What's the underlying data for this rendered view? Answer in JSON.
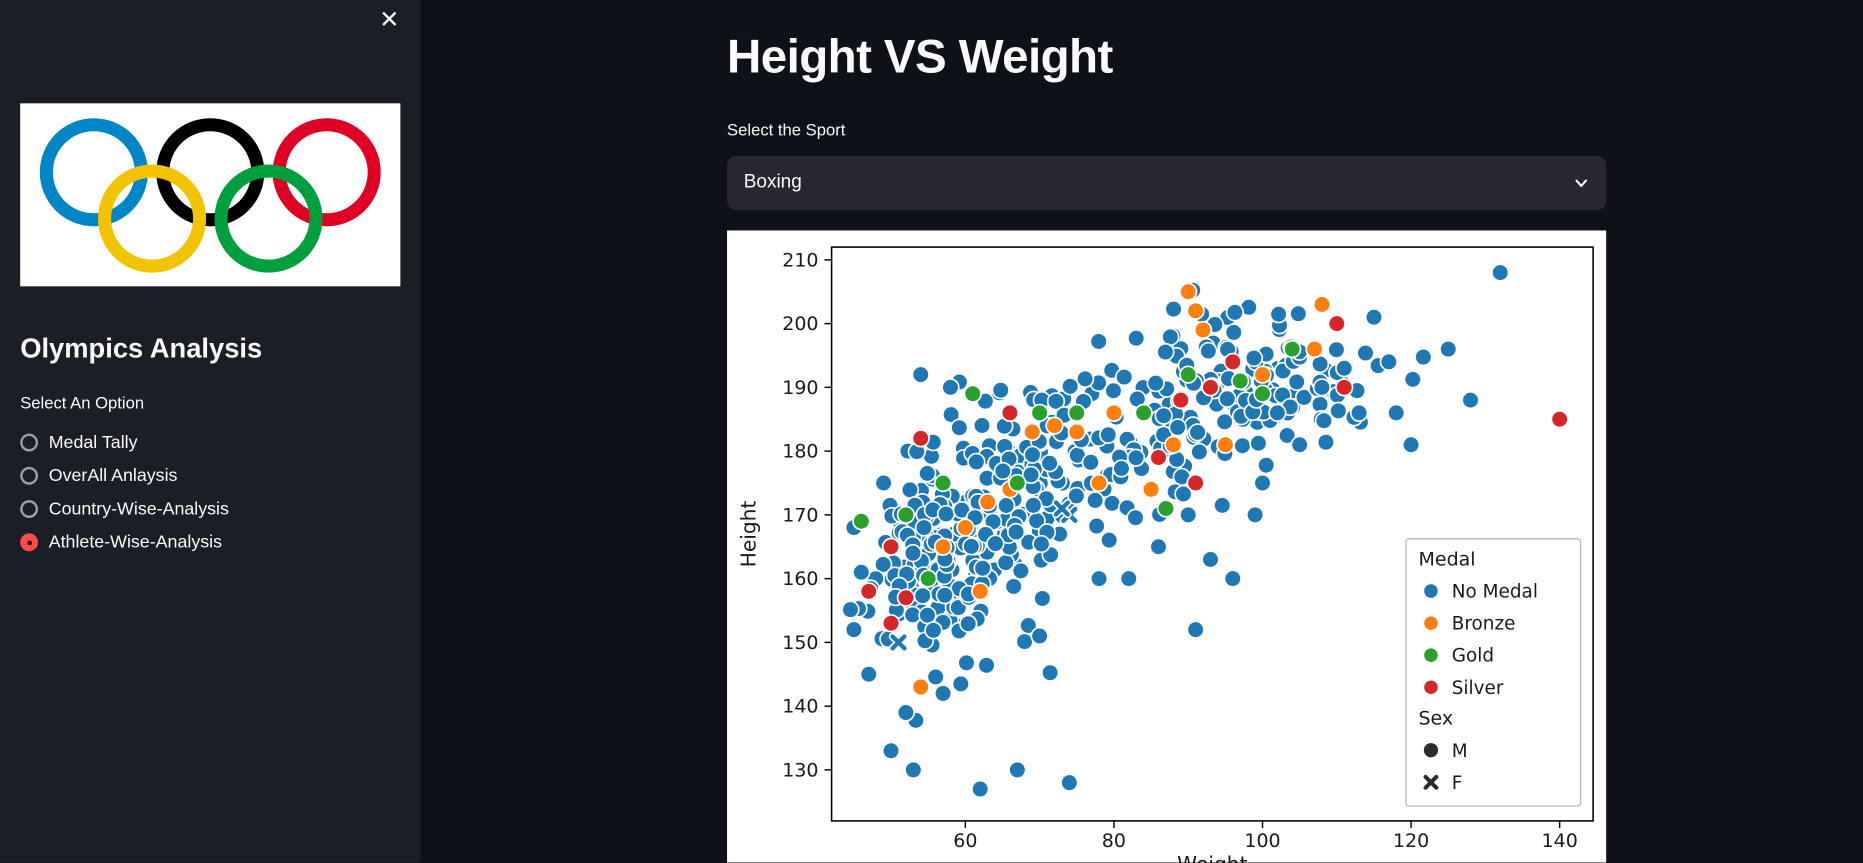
{
  "sidebar": {
    "close_icon": "✕",
    "title": "Olympics Analysis",
    "radio_label": "Select An Option",
    "options": [
      {
        "label": "Medal Tally"
      },
      {
        "label": "OverAll Anlaysis"
      },
      {
        "label": "Country-Wise-Analysis"
      },
      {
        "label": "Athlete-Wise-Analysis"
      }
    ],
    "selected_index": 3,
    "accent_color": "#ff4b4b"
  },
  "main": {
    "title": "Height VS Weight",
    "select_label": "Select the Sport",
    "select_value": "Boxing"
  },
  "chart_data": {
    "type": "scatter",
    "xlabel": "Weight",
    "ylabel": "Height",
    "xlim": [
      42,
      144.5
    ],
    "ylim": [
      122,
      212
    ],
    "xticks": [
      60,
      80,
      100,
      120,
      140
    ],
    "yticks": [
      130,
      140,
      150,
      160,
      170,
      180,
      190,
      200,
      210
    ],
    "hue_field": "Medal",
    "style_field": "Sex",
    "colors": {
      "No Medal": "#1f77b4",
      "Bronze": "#ff7f0e",
      "Gold": "#2ca02c",
      "Silver": "#d62728"
    },
    "legend": {
      "medal_title": "Medal",
      "medal_items": [
        {
          "label": "No Medal",
          "color": "#1f77b4"
        },
        {
          "label": "Bronze",
          "color": "#ff7f0e"
        },
        {
          "label": "Gold",
          "color": "#2ca02c"
        },
        {
          "label": "Silver",
          "color": "#d62728"
        }
      ],
      "sex_title": "Sex",
      "sex_items": [
        {
          "label": "M",
          "marker": "circle",
          "color": "#2b2b2b"
        },
        {
          "label": "F",
          "marker": "x",
          "color": "#2b2b2b"
        }
      ]
    },
    "seed": 42,
    "clusters": [
      {
        "n": 170,
        "cx": 57,
        "cy": 164,
        "sx": 5.5,
        "sy": 8,
        "medal": "No Medal",
        "sex": "M"
      },
      {
        "n": 110,
        "cx": 70,
        "cy": 177,
        "sx": 7,
        "sy": 7,
        "medal": "No Medal",
        "sex": "M"
      },
      {
        "n": 120,
        "cx": 95,
        "cy": 189,
        "sx": 8,
        "sy": 6,
        "medal": "No Medal",
        "sex": "M"
      },
      {
        "n": 30,
        "cx": 83,
        "cy": 183,
        "sx": 6,
        "sy": 6,
        "medal": "No Medal",
        "sex": "M"
      },
      {
        "n": 14,
        "cx": 110,
        "cy": 194,
        "sx": 6,
        "sy": 4,
        "medal": "No Medal",
        "sex": "M"
      }
    ],
    "points": [
      [
        62,
        127,
        "No Medal",
        "M"
      ],
      [
        67,
        130,
        "No Medal",
        "M"
      ],
      [
        74,
        128,
        "No Medal",
        "M"
      ],
      [
        50,
        133,
        "No Medal",
        "M"
      ],
      [
        52,
        139,
        "No Medal",
        "M"
      ],
      [
        53,
        130,
        "No Medal",
        "M"
      ],
      [
        57,
        142,
        "No Medal",
        "M"
      ],
      [
        91,
        152,
        "No Medal",
        "M"
      ],
      [
        96,
        160,
        "No Medal",
        "M"
      ],
      [
        132,
        208,
        "No Medal",
        "M"
      ],
      [
        125,
        196,
        "No Medal",
        "M"
      ],
      [
        128,
        188,
        "No Medal",
        "M"
      ],
      [
        120,
        181,
        "No Medal",
        "M"
      ],
      [
        118,
        186,
        "No Medal",
        "M"
      ],
      [
        115,
        201,
        "No Medal",
        "M"
      ],
      [
        111,
        193,
        "No Medal",
        "M"
      ],
      [
        113,
        186,
        "No Medal",
        "M"
      ],
      [
        117,
        194,
        "No Medal",
        "M"
      ],
      [
        54,
        192,
        "No Medal",
        "M"
      ],
      [
        58,
        190,
        "No Medal",
        "M"
      ],
      [
        49,
        175,
        "No Medal",
        "M"
      ],
      [
        45,
        168,
        "No Medal",
        "M"
      ],
      [
        46,
        161,
        "No Medal",
        "M"
      ],
      [
        45,
        152,
        "No Medal",
        "M"
      ],
      [
        47,
        145,
        "No Medal",
        "M"
      ],
      [
        70,
        151,
        "No Medal",
        "M"
      ],
      [
        78,
        160,
        "No Medal",
        "M"
      ],
      [
        82,
        160,
        "No Medal",
        "M"
      ],
      [
        86,
        165,
        "No Medal",
        "M"
      ],
      [
        90,
        170,
        "No Medal",
        "M"
      ],
      [
        100,
        175,
        "No Medal",
        "M"
      ],
      [
        105,
        181,
        "No Medal",
        "M"
      ],
      [
        108,
        190,
        "No Medal",
        "M"
      ],
      [
        102,
        186,
        "No Medal",
        "M"
      ],
      [
        99,
        170,
        "No Medal",
        "M"
      ],
      [
        93,
        163,
        "No Medal",
        "M"
      ],
      [
        51,
        150,
        "No Medal",
        "F"
      ],
      [
        74,
        170,
        "No Medal",
        "F"
      ],
      [
        73,
        171,
        "No Medal",
        "F"
      ],
      [
        54,
        143,
        "Bronze",
        "M"
      ],
      [
        57,
        165,
        "Bronze",
        "M"
      ],
      [
        60,
        168,
        "Bronze",
        "M"
      ],
      [
        63,
        172,
        "Bronze",
        "M"
      ],
      [
        66,
        174,
        "Bronze",
        "M"
      ],
      [
        69,
        183,
        "Bronze",
        "M"
      ],
      [
        72,
        184,
        "Bronze",
        "M"
      ],
      [
        75,
        183,
        "Bronze",
        "M"
      ],
      [
        78,
        175,
        "Bronze",
        "M"
      ],
      [
        80,
        186,
        "Bronze",
        "M"
      ],
      [
        85,
        174,
        "Bronze",
        "M"
      ],
      [
        88,
        181,
        "Bronze",
        "M"
      ],
      [
        90,
        205,
        "Bronze",
        "M"
      ],
      [
        91,
        202,
        "Bronze",
        "M"
      ],
      [
        92,
        199,
        "Bronze",
        "M"
      ],
      [
        95,
        181,
        "Bronze",
        "M"
      ],
      [
        100,
        192,
        "Bronze",
        "M"
      ],
      [
        107,
        196,
        "Bronze",
        "M"
      ],
      [
        108,
        203,
        "Bronze",
        "M"
      ],
      [
        62,
        158,
        "Bronze",
        "M"
      ],
      [
        46,
        169,
        "Gold",
        "M"
      ],
      [
        52,
        170,
        "Gold",
        "M"
      ],
      [
        55,
        160,
        "Gold",
        "M"
      ],
      [
        57,
        175,
        "Gold",
        "M"
      ],
      [
        61,
        189,
        "Gold",
        "M"
      ],
      [
        67,
        175,
        "Gold",
        "M"
      ],
      [
        70,
        186,
        "Gold",
        "M"
      ],
      [
        75,
        186,
        "Gold",
        "M"
      ],
      [
        84,
        186,
        "Gold",
        "M"
      ],
      [
        87,
        171,
        "Gold",
        "M"
      ],
      [
        90,
        192,
        "Gold",
        "M"
      ],
      [
        97,
        191,
        "Gold",
        "M"
      ],
      [
        100,
        189,
        "Gold",
        "M"
      ],
      [
        104,
        196,
        "Gold",
        "M"
      ],
      [
        47,
        158,
        "Silver",
        "M"
      ],
      [
        50,
        153,
        "Silver",
        "M"
      ],
      [
        50,
        165,
        "Silver",
        "M"
      ],
      [
        52,
        157,
        "Silver",
        "M"
      ],
      [
        54,
        182,
        "Silver",
        "M"
      ],
      [
        66,
        186,
        "Silver",
        "M"
      ],
      [
        86,
        179,
        "Silver",
        "M"
      ],
      [
        89,
        188,
        "Silver",
        "M"
      ],
      [
        91,
        175,
        "Silver",
        "M"
      ],
      [
        93,
        190,
        "Silver",
        "M"
      ],
      [
        96,
        194,
        "Silver",
        "M"
      ],
      [
        110,
        200,
        "Silver",
        "M"
      ],
      [
        111,
        190,
        "Silver",
        "M"
      ],
      [
        140,
        185,
        "Silver",
        "M"
      ]
    ]
  }
}
